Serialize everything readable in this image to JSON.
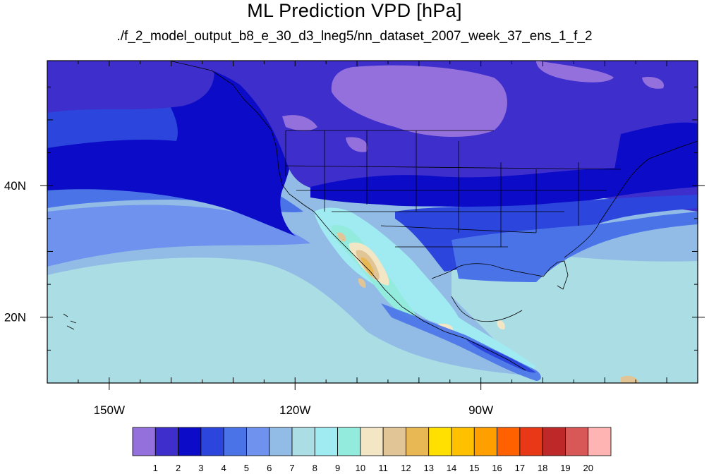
{
  "title": "ML Prediction VPD [hPa]",
  "subtitle": "./f_2_model_output_b8_e_30_d3_lneg5/nn_dataset_2007_week_37_ens_1_f_2",
  "map": {
    "lon_range": [
      -160,
      -55
    ],
    "lat_range": [
      10,
      59
    ],
    "lon_ticks": [
      {
        "lon": -150,
        "label": "150W"
      },
      {
        "lon": -120,
        "label": "120W"
      },
      {
        "lon": -90,
        "label": "90W"
      }
    ],
    "lat_ticks": [
      {
        "lat": 40,
        "label": "40N"
      },
      {
        "lat": 20,
        "label": "20N"
      }
    ]
  },
  "colorbar": {
    "labels": [
      "1",
      "2",
      "3",
      "4",
      "5",
      "6",
      "7",
      "8",
      "9",
      "10",
      "11",
      "12",
      "13",
      "14",
      "15",
      "16",
      "17",
      "18",
      "19",
      "20"
    ],
    "colors": [
      "#9370DB",
      "#3E2FCC",
      "#0B0BC8",
      "#2B45DD",
      "#4A73E8",
      "#6E92EE",
      "#92BCE6",
      "#ABDDE4",
      "#A0EBF2",
      "#93EBDE",
      "#F2E6C5",
      "#E2C597",
      "#E8B854",
      "#FFE000",
      "#FFC000",
      "#FFA000",
      "#FF6000",
      "#E83818",
      "#BF2828",
      "#D85858",
      "#FFB4B4"
    ]
  }
}
